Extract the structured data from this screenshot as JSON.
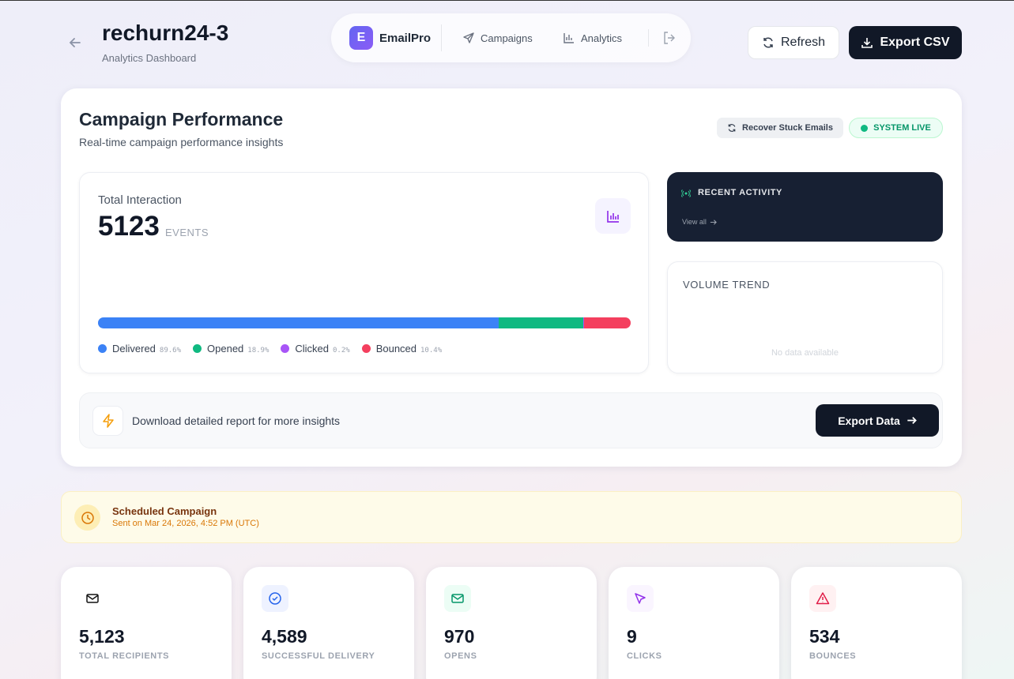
{
  "header": {
    "title": "rechurn24-3",
    "subtitle": "Analytics Dashboard"
  },
  "nav": {
    "brand_initial": "E",
    "brand": "EmailPro",
    "links": [
      "Campaigns",
      "Analytics"
    ]
  },
  "actions": [
    "Refresh",
    "Export CSV"
  ],
  "performance": {
    "title": "Campaign Performance",
    "subtitle": "Real-time campaign performance insights",
    "recover": "Recover Stuck Emails",
    "status": "SYSTEM LIVE"
  },
  "interaction": {
    "label": "Total Interaction",
    "total": "5123",
    "unit": "EVENTS",
    "legend": [
      {
        "name": "Delivered",
        "pct": "89.6%",
        "color": "#3b82f6"
      },
      {
        "name": "Opened",
        "pct": "18.9%",
        "color": "#10b981"
      },
      {
        "name": "Clicked",
        "pct": "0.2%",
        "color": "#a855f7"
      },
      {
        "name": "Bounced",
        "pct": "10.4%",
        "color": "#f43f5e"
      }
    ]
  },
  "recent": {
    "title": "RECENT ACTIVITY",
    "link": "View all"
  },
  "trend": {
    "title": "VOLUME TREND",
    "empty": "No data available"
  },
  "report": {
    "text": "Download detailed report for more insights",
    "button": "Export Data"
  },
  "schedule": {
    "title": "Scheduled Campaign",
    "detail": "Sent on Mar 24, 2026, 4:52 PM (UTC)"
  },
  "stats": [
    {
      "value": 5123,
      "label": "5,123",
      "name": "TOTAL RECIPIENTS"
    },
    {
      "value": 4589,
      "label": "4,589",
      "name": "SUCCESSFUL DELIVERY"
    },
    {
      "value": 970,
      "label": "970",
      "name": "OPENS"
    },
    {
      "value": 9,
      "label": "9",
      "name": "CLICKS"
    },
    {
      "value": 534,
      "label": "534",
      "name": "BOUNCES"
    }
  ]
}
